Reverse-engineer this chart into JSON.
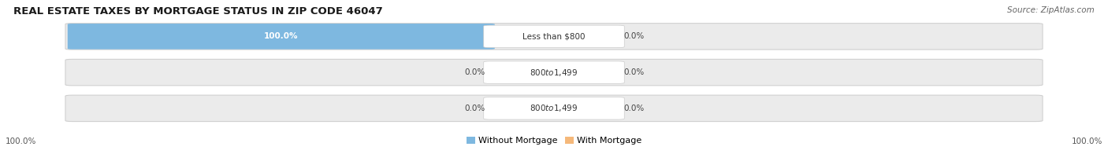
{
  "title": "REAL ESTATE TAXES BY MORTGAGE STATUS IN ZIP CODE 46047",
  "source": "Source: ZipAtlas.com",
  "rows": [
    {
      "label": "Less than $800",
      "without_mortgage": 100.0,
      "with_mortgage": 0.0
    },
    {
      "label": "$800 to $1,499",
      "without_mortgage": 0.0,
      "with_mortgage": 0.0
    },
    {
      "label": "$800 to $1,499",
      "without_mortgage": 0.0,
      "with_mortgage": 0.0
    }
  ],
  "color_without": "#7eb8e0",
  "color_with": "#f5b87a",
  "color_bg_bar": "#ebebeb",
  "color_bg_fig": "#ffffff",
  "color_bar_border": "#d0d0d0",
  "axis_left_label": "100.0%",
  "axis_right_label": "100.0%",
  "legend_without": "Without Mortgage",
  "legend_with": "With Mortgage",
  "title_fontsize": 9.5,
  "source_fontsize": 7.5,
  "label_fontsize": 7.5,
  "value_fontsize": 7.5
}
